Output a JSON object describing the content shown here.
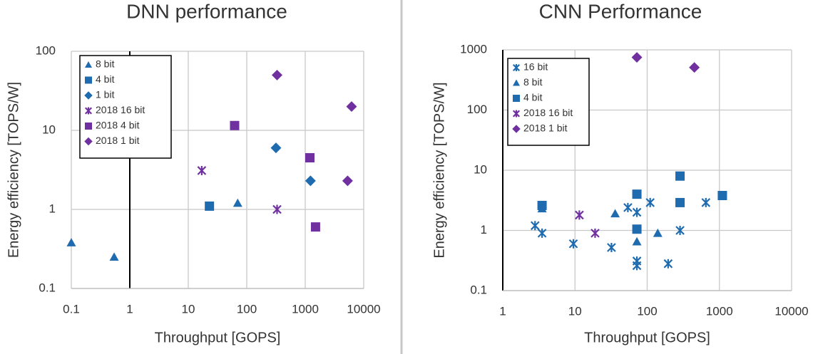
{
  "chart_data": [
    {
      "type": "scatter",
      "title": "DNN performance",
      "x_label": "Throughput [GOPS]",
      "y_label": "Energy efficiency [TOPS/W]",
      "xscale": "log",
      "yscale": "log",
      "xlim": [
        0.1,
        10000
      ],
      "ylim": [
        0.1,
        100
      ],
      "xticks": [
        0.1,
        1,
        10,
        100,
        1000,
        10000
      ],
      "yticks": [
        0.1,
        1,
        10,
        100
      ],
      "y_axis_at": 1,
      "grid": true,
      "legend": "upper left",
      "series": [
        {
          "name": "8 bit",
          "color": "#1f6bb0",
          "marker": "triangle",
          "x": [
            0.1,
            0.54,
            70
          ],
          "values": [
            0.38,
            0.25,
            1.2
          ]
        },
        {
          "name": "4 bit",
          "color": "#1f6bb0",
          "marker": "square",
          "x": [
            23
          ],
          "values": [
            1.1
          ]
        },
        {
          "name": "1 bit",
          "color": "#1f6bb0",
          "marker": "diamond",
          "x": [
            316,
            1230
          ],
          "values": [
            6,
            2.3
          ]
        },
        {
          "name": "2018 16 bit",
          "color": "#7030a0",
          "marker": "asterisk",
          "x": [
            17,
            330
          ],
          "values": [
            3.1,
            1
          ]
        },
        {
          "name": "2018 4 bit",
          "color": "#7030a0",
          "marker": "square",
          "x": [
            62,
            1200,
            1500
          ],
          "values": [
            11.5,
            4.5,
            0.6
          ]
        },
        {
          "name": "2018 1 bit",
          "color": "#7030a0",
          "marker": "diamond",
          "x": [
            330,
            6200,
            5300
          ],
          "values": [
            50,
            20,
            2.3
          ]
        }
      ]
    },
    {
      "type": "scatter",
      "title": "CNN Performance",
      "x_label": "Throughput [GOPS]",
      "y_label": "Energy efficiency [TOPS/W]",
      "xscale": "log",
      "yscale": "log",
      "xlim": [
        1,
        10000
      ],
      "ylim": [
        0.1,
        1000
      ],
      "xticks": [
        1,
        10,
        100,
        1000,
        10000
      ],
      "yticks": [
        0.1,
        1,
        10,
        100,
        1000
      ],
      "y_axis_at": 1,
      "grid": true,
      "legend": "upper left",
      "series": [
        {
          "name": "16 bit",
          "color": "#1f6bb0",
          "marker": "asterisk",
          "x": [
            2.8,
            3.5,
            9.5,
            32,
            54,
            72,
            72,
            72,
            110,
            195,
            285,
            650
          ],
          "values": [
            1.2,
            0.9,
            0.6,
            0.52,
            2.4,
            2.0,
            0.31,
            0.26,
            2.9,
            0.28,
            1,
            2.9
          ]
        },
        {
          "name": "8 bit",
          "color": "#1f6bb0",
          "marker": "triangle",
          "x": [
            3.5,
            36,
            72,
            140
          ],
          "values": [
            2.3,
            1.9,
            0.65,
            0.9
          ]
        },
        {
          "name": "4 bit",
          "color": "#1f6bb0",
          "marker": "square",
          "x": [
            3.5,
            72,
            72,
            285,
            285,
            1100
          ],
          "values": [
            2.6,
            4,
            1.05,
            8,
            2.9,
            3.8
          ]
        },
        {
          "name": "2018 16 bit",
          "color": "#7030a0",
          "marker": "asterisk",
          "x": [
            11.5,
            19
          ],
          "values": [
            1.8,
            0.9
          ]
        },
        {
          "name": "2018 1 bit",
          "color": "#7030a0",
          "marker": "diamond",
          "x": [
            72,
            450
          ],
          "values": [
            750,
            510
          ]
        }
      ]
    }
  ]
}
